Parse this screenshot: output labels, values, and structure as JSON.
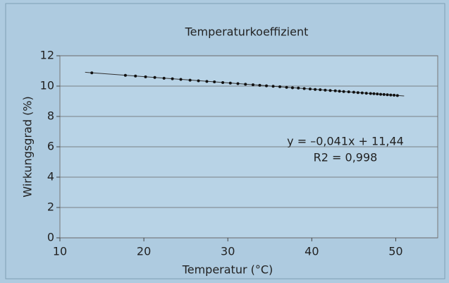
{
  "chart_data": {
    "type": "scatter",
    "title": "Temperaturkoeffizient",
    "x_label": "Temperatur (°C)",
    "y_label": "Wirkungsgrad (%)",
    "annotations": [
      "y = –0,041x + 11,44",
      "R2 = 0,998"
    ],
    "xlim": [
      10,
      55
    ],
    "ylim": [
      0,
      12
    ],
    "xticks": [
      10,
      20,
      30,
      40,
      50
    ],
    "yticks": [
      0,
      2,
      4,
      6,
      8,
      10,
      12
    ],
    "grid": true,
    "color": "#111111",
    "x": [
      13.8,
      17.8,
      19,
      20.2,
      21.3,
      22.4,
      23.4,
      24.4,
      25.5,
      26.5,
      27.5,
      28.4,
      29.4,
      30.3,
      31.2,
      32.1,
      33,
      33.8,
      34.6,
      35.4,
      36.2,
      37,
      37.7,
      38.4,
      39.1,
      39.8,
      40.4,
      41,
      41.6,
      42.2,
      42.8,
      43.3,
      43.8,
      44.4,
      45,
      45.5,
      46,
      46.5,
      47,
      47.4,
      47.8,
      48.2,
      48.6,
      49,
      49.4,
      49.8,
      50.2
    ],
    "values": [
      10.87,
      10.71,
      10.66,
      10.61,
      10.57,
      10.52,
      10.48,
      10.44,
      10.39,
      10.35,
      10.31,
      10.28,
      10.23,
      10.2,
      10.16,
      10.12,
      10.09,
      10.05,
      10.02,
      9.99,
      9.96,
      9.92,
      9.89,
      9.87,
      9.84,
      9.81,
      9.78,
      9.76,
      9.73,
      9.71,
      9.69,
      9.66,
      9.64,
      9.62,
      9.6,
      9.57,
      9.55,
      9.53,
      9.51,
      9.5,
      9.48,
      9.46,
      9.45,
      9.43,
      9.41,
      9.4,
      9.38
    ],
    "trendline": {
      "x": [
        13,
        51
      ],
      "y": [
        10.91,
        9.35
      ],
      "color": "#333333"
    }
  }
}
